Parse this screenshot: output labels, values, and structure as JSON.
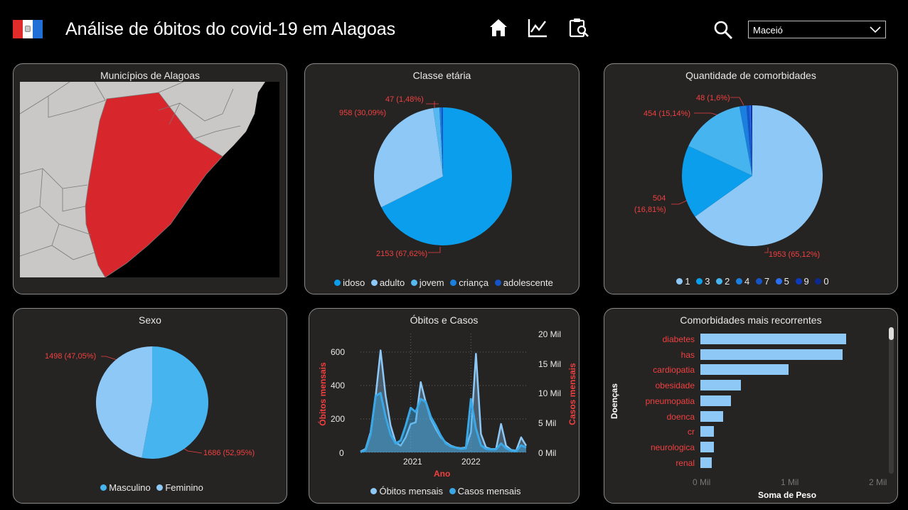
{
  "header": {
    "title": "Análise de óbitos do covid-19 em Alagoas",
    "nav_icons": [
      "home-icon",
      "line-chart-icon",
      "clipboard-search-icon"
    ],
    "search_icon": "search-icon",
    "municipio_select": {
      "value": "Maceió"
    }
  },
  "colors": {
    "background": "#000000",
    "card": "#252423",
    "highlight_red": "#d7262c",
    "label_red": "#f04040",
    "blue_dark": "#0a9eec",
    "blue_light": "#8ec8f6",
    "blue_mid": "#46b4ee"
  },
  "mapa": {
    "title": "Municípios de Alagoas",
    "highlighted": "Maceió"
  },
  "classe_etaria": {
    "title": "Classe etária",
    "labels": [
      "958 (30,09%)",
      "47 (1,48%)",
      "2153 (67,62%)"
    ],
    "legend": [
      "idoso",
      "adulto",
      "jovem",
      "criança",
      "adolescente"
    ],
    "chart_data": {
      "type": "pie",
      "categories": [
        "idoso",
        "adulto",
        "jovem",
        "criança",
        "adolescente"
      ],
      "values": [
        2153,
        958,
        47,
        15,
        11
      ],
      "colors": [
        "#0a9eec",
        "#8ec8f6",
        "#56b8f0",
        "#1b7fe0",
        "#1454c8"
      ]
    }
  },
  "comorbidades": {
    "title": "Quantidade de comorbidades",
    "labels": [
      "48 (1,6%)",
      "454 (15,14%)",
      "504",
      "(16,81%)",
      "1953 (65,12%)"
    ],
    "legend": [
      "1",
      "3",
      "2",
      "4",
      "7",
      "5",
      "9",
      "0"
    ],
    "chart_data": {
      "type": "pie",
      "categories": [
        "1",
        "3",
        "2",
        "4",
        "7",
        "5",
        "9",
        "0"
      ],
      "values": [
        1953,
        504,
        454,
        48,
        20,
        10,
        6,
        4
      ],
      "colors": [
        "#8ec8f6",
        "#0a9eec",
        "#46b4ee",
        "#1b7fe0",
        "#1454c8",
        "#2a6ff0",
        "#0b3cbf",
        "#0a2a90"
      ]
    }
  },
  "sexo": {
    "title": "Sexo",
    "labels": [
      "1498 (47,05%)",
      "1686 (52,95%)"
    ],
    "legend": [
      "Masculino",
      "Feminino"
    ],
    "chart_data": {
      "type": "pie",
      "categories": [
        "Masculino",
        "Feminino"
      ],
      "values": [
        1686,
        1498
      ],
      "colors": [
        "#46b4ee",
        "#8ec8f6"
      ]
    }
  },
  "obitos_casos": {
    "title": "Óbitos e Casos",
    "ylabel_left": "Óbitos mensais",
    "ylabel_right": "Casos mensais",
    "xlabel": "Ano",
    "left_ticks": [
      "600",
      "400",
      "200",
      "0"
    ],
    "right_ticks": [
      "20 Mil",
      "15 Mil",
      "10 Mil",
      "5 Mil",
      "0 Mil"
    ],
    "x_ticks": [
      "2021",
      "2022"
    ],
    "legend": [
      "Óbitos mensais",
      "Casos mensais"
    ],
    "chart_data": {
      "type": "line",
      "x": [
        "2020-03",
        "2020-04",
        "2020-05",
        "2020-06",
        "2020-07",
        "2020-08",
        "2020-09",
        "2020-10",
        "2020-11",
        "2020-12",
        "2021-01",
        "2021-02",
        "2021-03",
        "2021-04",
        "2021-05",
        "2021-06",
        "2021-07",
        "2021-08",
        "2021-09",
        "2021-10",
        "2021-11",
        "2021-12",
        "2022-01",
        "2022-02",
        "2022-03",
        "2022-04",
        "2022-05",
        "2022-06",
        "2022-07",
        "2022-08",
        "2022-09",
        "2022-10",
        "2022-11",
        "2022-12"
      ],
      "series": [
        {
          "name": "Óbitos mensais",
          "axis": "left",
          "ylim": [
            0,
            700
          ],
          "values": [
            5,
            20,
            120,
            330,
            610,
            340,
            160,
            60,
            40,
            90,
            170,
            180,
            420,
            300,
            200,
            140,
            90,
            60,
            40,
            30,
            25,
            30,
            120,
            590,
            110,
            30,
            20,
            20,
            170,
            40,
            15,
            10,
            90,
            40
          ]
        },
        {
          "name": "Casos mensais",
          "axis": "right",
          "ylim": [
            0,
            20000
          ],
          "values": [
            50,
            400,
            3000,
            9500,
            10000,
            6000,
            3000,
            1500,
            2000,
            4500,
            7500,
            6800,
            9000,
            8500,
            6000,
            4500,
            2800,
            1500,
            1000,
            800,
            600,
            700,
            9000,
            4000,
            1200,
            600,
            500,
            500,
            1500,
            700,
            300,
            200,
            1200,
            800
          ]
        }
      ],
      "colors": [
        "#8ec8f6",
        "#3aa8e6"
      ]
    }
  },
  "recorrentes": {
    "title": "Comorbidades mais recorrentes",
    "ylabel": "Doenças",
    "xlabel": "Soma de Peso",
    "x_ticks": [
      "0 Mil",
      "1 Mil",
      "2 Mil"
    ],
    "chart_data": {
      "type": "bar",
      "orientation": "horizontal",
      "categories": [
        "diabetes",
        "has",
        "cardiopatia",
        "obesidade",
        "pneumopatia",
        "doenca",
        "cr",
        "neurologica",
        "renal"
      ],
      "values": [
        1650,
        1610,
        1000,
        460,
        350,
        255,
        155,
        150,
        125
      ],
      "xlim": [
        0,
        2000
      ]
    }
  }
}
